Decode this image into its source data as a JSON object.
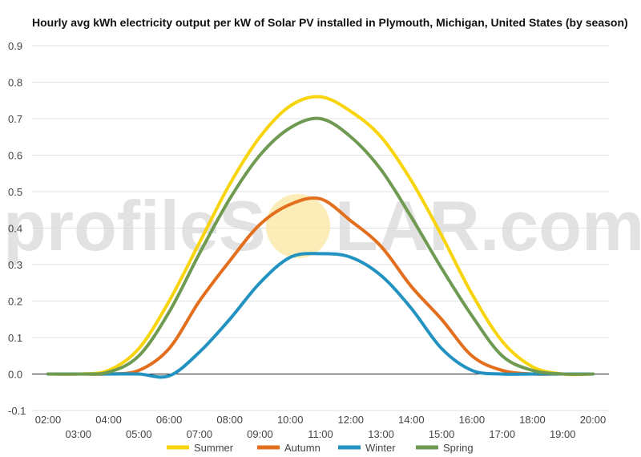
{
  "watermark": {
    "left": "profileS",
    "right": "LAR.com",
    "sun_color": "#fbe9a6"
  },
  "chart_data": {
    "type": "line",
    "title": "Hourly avg kWh electricity output per kW of Solar PV installed in Plymouth, Michigan, United States (by season)",
    "xlabel": "",
    "ylabel": "",
    "x": [
      "02:00",
      "03:00",
      "04:00",
      "05:00",
      "06:00",
      "07:00",
      "08:00",
      "09:00",
      "10:00",
      "11:00",
      "12:00",
      "13:00",
      "14:00",
      "15:00",
      "16:00",
      "17:00",
      "18:00",
      "19:00",
      "20:00"
    ],
    "ylim": [
      -0.1,
      0.9
    ],
    "yticks": [
      "-0.1",
      "0.0",
      "0.1",
      "0.2",
      "0.3",
      "0.4",
      "0.5",
      "0.6",
      "0.7",
      "0.8",
      "0.9"
    ],
    "grid": true,
    "legend": "bottom",
    "series": [
      {
        "name": "Summer",
        "color": "#f7d40c",
        "values": [
          0,
          0,
          0.01,
          0.07,
          0.2,
          0.36,
          0.52,
          0.65,
          0.735,
          0.76,
          0.72,
          0.65,
          0.53,
          0.38,
          0.22,
          0.09,
          0.02,
          0,
          0
        ]
      },
      {
        "name": "Autumn",
        "color": "#e36f1e",
        "values": [
          0,
          0,
          0,
          0.01,
          0.07,
          0.2,
          0.31,
          0.41,
          0.465,
          0.48,
          0.42,
          0.35,
          0.24,
          0.15,
          0.05,
          0.01,
          0,
          0,
          0
        ]
      },
      {
        "name": "Winter",
        "color": "#2293c1",
        "values": [
          0,
          0,
          0,
          0,
          -0.005,
          0.06,
          0.15,
          0.25,
          0.32,
          0.33,
          0.32,
          0.27,
          0.18,
          0.07,
          0.01,
          0,
          0,
          0,
          0
        ]
      },
      {
        "name": "Spring",
        "color": "#6f9a52",
        "values": [
          0,
          0,
          0.005,
          0.05,
          0.17,
          0.33,
          0.48,
          0.6,
          0.675,
          0.7,
          0.65,
          0.56,
          0.43,
          0.29,
          0.16,
          0.05,
          0.01,
          0,
          0
        ]
      }
    ]
  }
}
